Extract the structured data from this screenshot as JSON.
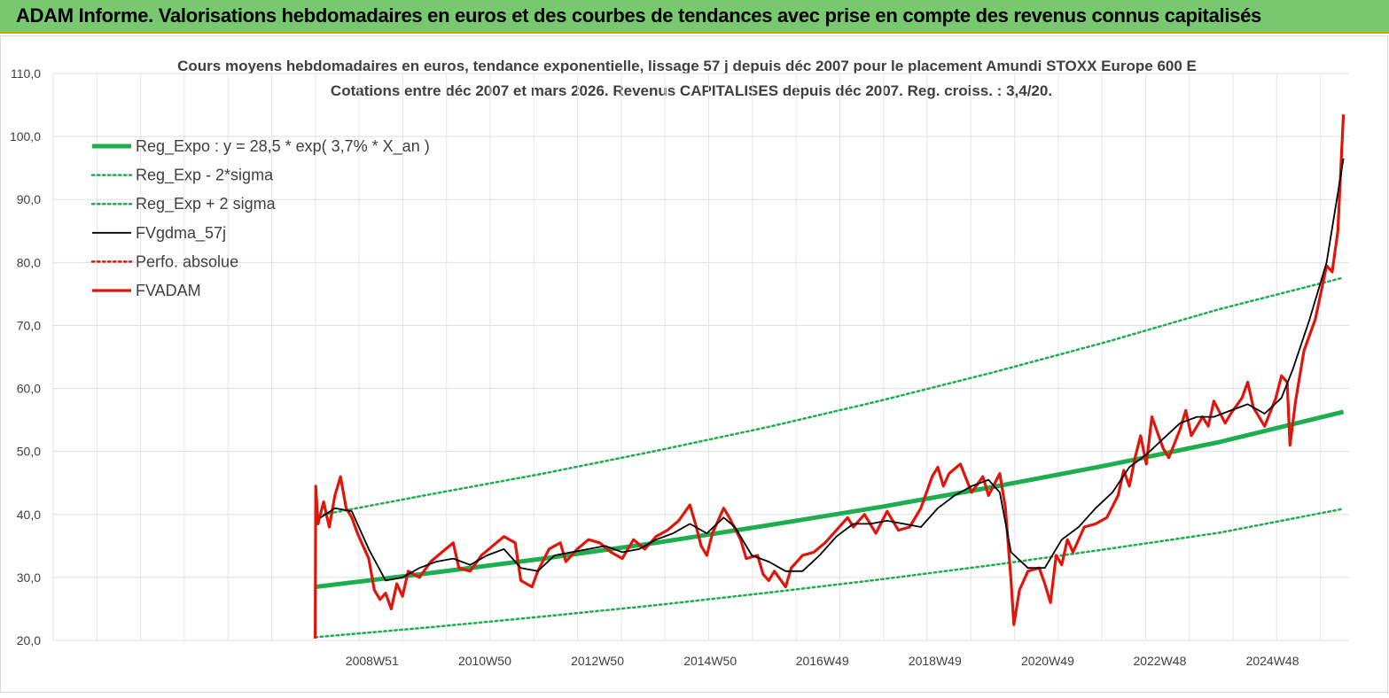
{
  "banner": {
    "title": "ADAM Informe. Valorisations hebdomadaires en euros et des courbes de tendances avec prise en compte des revenus connus capitalisés",
    "color": "#77c86f"
  },
  "chart_data": {
    "type": "line",
    "title": "Cours moyens hebdomadaires en euros, tendance exponentielle, lissage 57 j depuis déc 2007 pour le placement Amundi STOXX Europe 600 E",
    "subtitle": "Cotations entre déc 2007 et mars 2026. Revenus CAPITALISES depuis déc 2007. Reg. croiss. : 3,4/20.",
    "ylim": [
      20,
      110
    ],
    "y_ticks": [
      "20,0",
      "30,0",
      "40,0",
      "50,0",
      "60,0",
      "70,0",
      "80,0",
      "90,0",
      "100,0",
      "110,0"
    ],
    "x_tick_labels": [
      "2008W51",
      "2010W50",
      "2012W50",
      "2014W50",
      "2016W49",
      "2018W49",
      "2020W49",
      "2022W48",
      "2024W48"
    ],
    "x_tick_years": [
      2008.96,
      2010.96,
      2012.96,
      2014.96,
      2016.95,
      2018.95,
      2020.95,
      2022.94,
      2024.94
    ],
    "xlim": [
      2003.3,
      2026.3
    ],
    "grid": true,
    "legend_position": "top-left",
    "regression": {
      "label": "y = 28,5 * exp( 3,7% *  X_an )",
      "a": 28.5,
      "rate": 0.037,
      "start_year": 2007.95
    },
    "series": [
      {
        "name": "Reg_Expo : y = 28,5 * exp( 3,7% *  X_an )",
        "color": "#1fae4f",
        "style": "thick",
        "points": [
          [
            2007.95,
            28.5
          ],
          [
            2010,
            30.7
          ],
          [
            2012,
            33.0
          ],
          [
            2014,
            35.5
          ],
          [
            2016,
            38.3
          ],
          [
            2018,
            41.2
          ],
          [
            2020,
            44.4
          ],
          [
            2022,
            47.8
          ],
          [
            2024,
            51.5
          ],
          [
            2026.2,
            56.3
          ]
        ]
      },
      {
        "name": "Reg_Exp - 2*sigma",
        "color": "#1fae4f",
        "style": "dotted",
        "points": [
          [
            2007.95,
            20.5
          ],
          [
            2010,
            22.1
          ],
          [
            2012,
            23.8
          ],
          [
            2014,
            25.6
          ],
          [
            2016,
            27.6
          ],
          [
            2018,
            29.7
          ],
          [
            2020,
            32.0
          ],
          [
            2022,
            34.5
          ],
          [
            2024,
            37.1
          ],
          [
            2026.2,
            40.9
          ]
        ]
      },
      {
        "name": "Reg_Exp + 2 sigma",
        "color": "#1fae4f",
        "style": "dotted",
        "points": [
          [
            2008.1,
            40.0
          ],
          [
            2010,
            43.2
          ],
          [
            2012,
            46.5
          ],
          [
            2014,
            50.1
          ],
          [
            2016,
            53.9
          ],
          [
            2018,
            58.1
          ],
          [
            2020,
            62.6
          ],
          [
            2022,
            67.4
          ],
          [
            2024,
            72.6
          ],
          [
            2026.2,
            77.6
          ]
        ]
      },
      {
        "name": "FVgdma_57j",
        "color": "#000000",
        "style": "solid",
        "points": [
          [
            2008.05,
            39.5
          ],
          [
            2008.3,
            41.0
          ],
          [
            2008.6,
            40.5
          ],
          [
            2008.9,
            34.5
          ],
          [
            2009.2,
            29.5
          ],
          [
            2009.5,
            30.0
          ],
          [
            2009.8,
            31.5
          ],
          [
            2010.1,
            32.5
          ],
          [
            2010.4,
            33.0
          ],
          [
            2010.7,
            32.0
          ],
          [
            2011.0,
            33.5
          ],
          [
            2011.3,
            34.5
          ],
          [
            2011.6,
            31.5
          ],
          [
            2011.9,
            31.0
          ],
          [
            2012.2,
            33.5
          ],
          [
            2012.5,
            34.0
          ],
          [
            2012.8,
            34.5
          ],
          [
            2013.1,
            35.0
          ],
          [
            2013.4,
            34.0
          ],
          [
            2013.7,
            34.5
          ],
          [
            2014.0,
            36.0
          ],
          [
            2014.3,
            37.0
          ],
          [
            2014.6,
            38.5
          ],
          [
            2014.9,
            37.0
          ],
          [
            2015.2,
            39.5
          ],
          [
            2015.4,
            38.0
          ],
          [
            2015.7,
            33.5
          ],
          [
            2016.0,
            32.5
          ],
          [
            2016.3,
            31.0
          ],
          [
            2016.6,
            31.0
          ],
          [
            2016.9,
            33.5
          ],
          [
            2017.2,
            36.5
          ],
          [
            2017.5,
            38.5
          ],
          [
            2017.8,
            38.5
          ],
          [
            2018.1,
            39.0
          ],
          [
            2018.4,
            38.5
          ],
          [
            2018.7,
            38.0
          ],
          [
            2019.0,
            41.0
          ],
          [
            2019.3,
            43.0
          ],
          [
            2019.6,
            44.5
          ],
          [
            2019.9,
            45.5
          ],
          [
            2020.1,
            43.5
          ],
          [
            2020.3,
            34.0
          ],
          [
            2020.6,
            31.5
          ],
          [
            2020.9,
            31.5
          ],
          [
            2021.2,
            36.0
          ],
          [
            2021.5,
            38.0
          ],
          [
            2021.8,
            41.0
          ],
          [
            2022.1,
            43.5
          ],
          [
            2022.4,
            47.5
          ],
          [
            2022.7,
            49.5
          ],
          [
            2023.0,
            52.0
          ],
          [
            2023.3,
            54.5
          ],
          [
            2023.6,
            55.5
          ],
          [
            2023.9,
            55.5
          ],
          [
            2024.2,
            56.5
          ],
          [
            2024.5,
            57.5
          ],
          [
            2024.8,
            56.0
          ],
          [
            2025.1,
            58.5
          ],
          [
            2025.3,
            63.0
          ],
          [
            2025.6,
            71.0
          ],
          [
            2025.9,
            80.0
          ],
          [
            2026.2,
            96.5
          ]
        ]
      },
      {
        "name": "Perfo. absolue",
        "color": "#e0160c",
        "style": "dotted",
        "points": []
      },
      {
        "name": "FVADAM",
        "color": "#e0160c",
        "style": "thick",
        "points": [
          [
            2007.95,
            20.3
          ],
          [
            2007.96,
            44.5
          ],
          [
            2008.0,
            38.5
          ],
          [
            2008.1,
            42.0
          ],
          [
            2008.2,
            38.0
          ],
          [
            2008.3,
            43.0
          ],
          [
            2008.4,
            46.0
          ],
          [
            2008.5,
            41.0
          ],
          [
            2008.6,
            39.5
          ],
          [
            2008.7,
            37.0
          ],
          [
            2008.8,
            35.0
          ],
          [
            2008.9,
            33.0
          ],
          [
            2009.0,
            28.0
          ],
          [
            2009.1,
            26.5
          ],
          [
            2009.2,
            27.5
          ],
          [
            2009.3,
            25.0
          ],
          [
            2009.4,
            29.0
          ],
          [
            2009.5,
            27.0
          ],
          [
            2009.6,
            31.0
          ],
          [
            2009.8,
            30.0
          ],
          [
            2010.0,
            32.5
          ],
          [
            2010.2,
            34.0
          ],
          [
            2010.4,
            35.5
          ],
          [
            2010.5,
            31.5
          ],
          [
            2010.7,
            31.0
          ],
          [
            2010.9,
            33.5
          ],
          [
            2011.1,
            35.0
          ],
          [
            2011.3,
            36.5
          ],
          [
            2011.5,
            35.5
          ],
          [
            2011.6,
            29.5
          ],
          [
            2011.8,
            28.5
          ],
          [
            2011.9,
            31.0
          ],
          [
            2012.1,
            34.5
          ],
          [
            2012.3,
            35.5
          ],
          [
            2012.4,
            32.5
          ],
          [
            2012.6,
            34.5
          ],
          [
            2012.8,
            36.0
          ],
          [
            2013.0,
            35.5
          ],
          [
            2013.2,
            34.0
          ],
          [
            2013.4,
            33.0
          ],
          [
            2013.6,
            36.0
          ],
          [
            2013.8,
            34.5
          ],
          [
            2014.0,
            36.5
          ],
          [
            2014.2,
            37.5
          ],
          [
            2014.4,
            39.0
          ],
          [
            2014.6,
            41.5
          ],
          [
            2014.7,
            38.5
          ],
          [
            2014.8,
            35.0
          ],
          [
            2014.9,
            33.5
          ],
          [
            2015.0,
            37.0
          ],
          [
            2015.2,
            41.0
          ],
          [
            2015.3,
            39.5
          ],
          [
            2015.5,
            36.0
          ],
          [
            2015.6,
            33.0
          ],
          [
            2015.8,
            33.5
          ],
          [
            2015.9,
            30.5
          ],
          [
            2016.0,
            29.5
          ],
          [
            2016.1,
            31.0
          ],
          [
            2016.3,
            28.5
          ],
          [
            2016.4,
            31.5
          ],
          [
            2016.6,
            33.5
          ],
          [
            2016.8,
            34.0
          ],
          [
            2017.0,
            35.5
          ],
          [
            2017.2,
            37.5
          ],
          [
            2017.4,
            39.5
          ],
          [
            2017.5,
            38.0
          ],
          [
            2017.7,
            40.0
          ],
          [
            2017.9,
            37.0
          ],
          [
            2018.1,
            40.5
          ],
          [
            2018.3,
            37.5
          ],
          [
            2018.5,
            38.0
          ],
          [
            2018.7,
            41.0
          ],
          [
            2018.9,
            46.0
          ],
          [
            2019.0,
            47.5
          ],
          [
            2019.1,
            44.5
          ],
          [
            2019.2,
            46.5
          ],
          [
            2019.4,
            48.0
          ],
          [
            2019.6,
            43.5
          ],
          [
            2019.8,
            46.0
          ],
          [
            2019.9,
            43.0
          ],
          [
            2020.1,
            46.5
          ],
          [
            2020.2,
            41.0
          ],
          [
            2020.3,
            29.5
          ],
          [
            2020.35,
            22.5
          ],
          [
            2020.45,
            28.0
          ],
          [
            2020.6,
            31.0
          ],
          [
            2020.8,
            31.5
          ],
          [
            2020.9,
            29.0
          ],
          [
            2021.0,
            26.0
          ],
          [
            2021.1,
            33.5
          ],
          [
            2021.2,
            32.0
          ],
          [
            2021.3,
            36.0
          ],
          [
            2021.4,
            34.0
          ],
          [
            2021.6,
            38.0
          ],
          [
            2021.8,
            38.5
          ],
          [
            2022.0,
            39.5
          ],
          [
            2022.2,
            43.0
          ],
          [
            2022.3,
            47.0
          ],
          [
            2022.4,
            44.5
          ],
          [
            2022.5,
            49.0
          ],
          [
            2022.6,
            52.5
          ],
          [
            2022.7,
            48.0
          ],
          [
            2022.8,
            55.5
          ],
          [
            2023.0,
            50.5
          ],
          [
            2023.1,
            49.0
          ],
          [
            2023.3,
            53.5
          ],
          [
            2023.4,
            56.5
          ],
          [
            2023.5,
            52.5
          ],
          [
            2023.7,
            55.5
          ],
          [
            2023.8,
            54.0
          ],
          [
            2023.9,
            58.0
          ],
          [
            2024.1,
            54.5
          ],
          [
            2024.2,
            56.0
          ],
          [
            2024.4,
            58.5
          ],
          [
            2024.5,
            61.0
          ],
          [
            2024.6,
            57.0
          ],
          [
            2024.7,
            55.5
          ],
          [
            2024.8,
            54.0
          ],
          [
            2025.0,
            58.5
          ],
          [
            2025.1,
            62.0
          ],
          [
            2025.2,
            61.0
          ],
          [
            2025.25,
            51.0
          ],
          [
            2025.35,
            58.0
          ],
          [
            2025.5,
            66.0
          ],
          [
            2025.7,
            71.0
          ],
          [
            2025.9,
            79.5
          ],
          [
            2026.0,
            78.5
          ],
          [
            2026.1,
            85.0
          ],
          [
            2026.2,
            103.5
          ]
        ]
      }
    ]
  }
}
